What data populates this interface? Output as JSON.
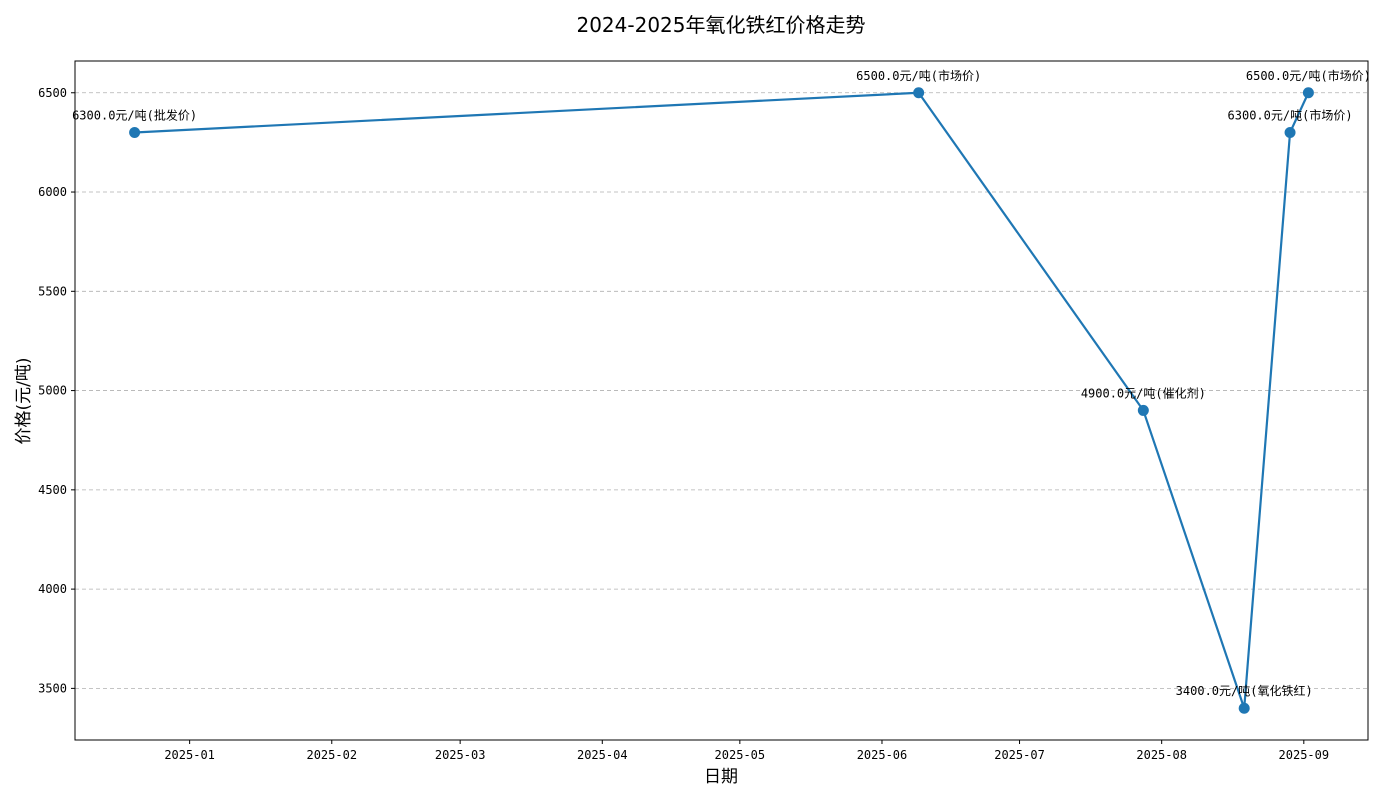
{
  "chart_data": {
    "type": "line",
    "title": "2024-2025年氧化铁红价格走势",
    "xlabel": "日期",
    "ylabel": "价格(元/吨)",
    "x_type": "date",
    "xlim": [
      "2024-12-07",
      "2025-09-15"
    ],
    "ylim": [
      3240,
      6660
    ],
    "x_ticks": [
      "2025-01-01",
      "2025-02-01",
      "2025-03-01",
      "2025-04-01",
      "2025-05-01",
      "2025-06-01",
      "2025-07-01",
      "2025-08-01",
      "2025-09-01"
    ],
    "x_tick_labels": [
      "2025-01",
      "2025-02",
      "2025-03",
      "2025-04",
      "2025-05",
      "2025-06",
      "2025-07",
      "2025-08",
      "2025-09"
    ],
    "y_ticks": [
      3500,
      4000,
      4500,
      5000,
      5500,
      6000,
      6500
    ],
    "y_tick_labels": [
      "3500",
      "4000",
      "4500",
      "5000",
      "5500",
      "6000",
      "6500"
    ],
    "grid": "y-dashed",
    "line_color": "#1f77b4",
    "points": [
      {
        "x": "2024-12-20",
        "y": 6300,
        "label": "6300.0元/吨(批发价)"
      },
      {
        "x": "2025-06-09",
        "y": 6500,
        "label": "6500.0元/吨(市场价)"
      },
      {
        "x": "2025-07-28",
        "y": 4900,
        "label": "4900.0元/吨(催化剂)"
      },
      {
        "x": "2025-08-19",
        "y": 3400,
        "label": "3400.0元/吨(氧化铁红)"
      },
      {
        "x": "2025-08-29",
        "y": 6300,
        "label": "6300.0元/吨(市场价)"
      },
      {
        "x": "2025-09-02",
        "y": 6500,
        "label": "6500.0元/吨(市场价)"
      }
    ]
  }
}
